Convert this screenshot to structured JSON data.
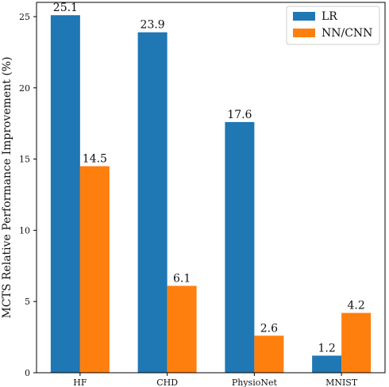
{
  "chart_data": {
    "type": "bar",
    "title": "",
    "xlabel": "",
    "ylabel": "MCTS Relative Performance Improvement (%)",
    "categories": [
      "HF",
      "CHD",
      "PhysioNet",
      "MNIST"
    ],
    "series": [
      {
        "name": "LR",
        "color": "#1f77b4",
        "values": [
          25.1,
          23.9,
          17.6,
          1.2
        ]
      },
      {
        "name": "NN/CNN",
        "color": "#ff7f0e",
        "values": [
          14.5,
          6.1,
          2.6,
          4.2
        ]
      }
    ],
    "ylim": [
      0,
      26
    ],
    "yticks": [
      0,
      5,
      10,
      15,
      20,
      25
    ],
    "grid": false,
    "legend_position": "top-right"
  }
}
